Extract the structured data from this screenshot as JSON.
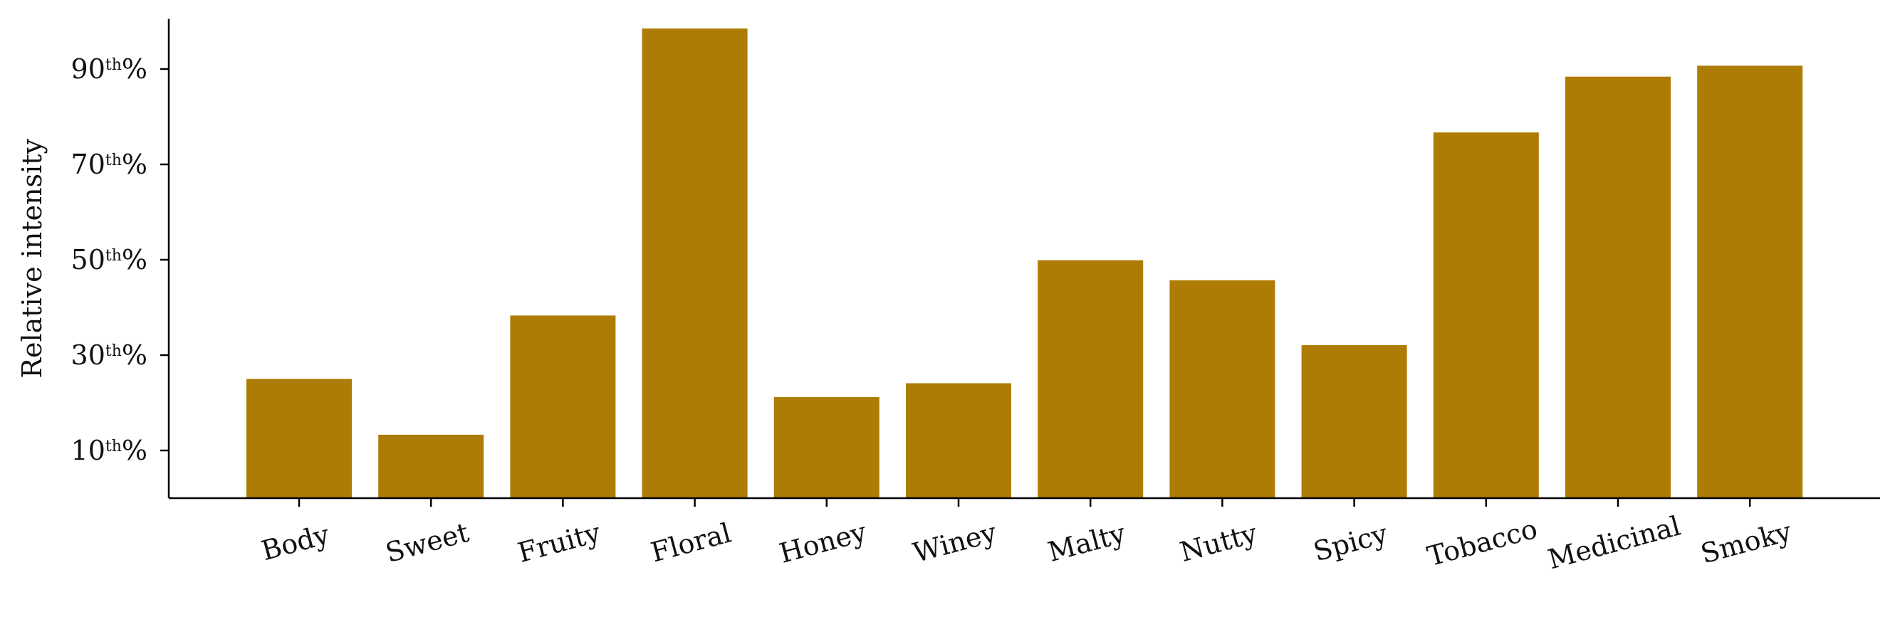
{
  "chart_data": {
    "type": "bar",
    "categories": [
      "Body",
      "Sweet",
      "Fruity",
      "Floral",
      "Honey",
      "Winey",
      "Malty",
      "Nutty",
      "Spicy",
      "Tobacco",
      "Medicinal",
      "Smoky"
    ],
    "values": [
      25,
      13.3,
      38.3,
      98.5,
      21.2,
      24.1,
      49.9,
      45.7,
      32.1,
      76.7,
      88.4,
      90.7
    ],
    "ylabel": "Relative intensity",
    "xlabel": "",
    "ylim": [
      0,
      100
    ],
    "yticks": [
      10,
      30,
      50,
      70,
      90
    ],
    "ytick_labels": [
      {
        "num": "10",
        "sup": "th",
        "suffix": "%"
      },
      {
        "num": "30",
        "sup": "th",
        "suffix": "%"
      },
      {
        "num": "50",
        "sup": "th",
        "suffix": "%"
      },
      {
        "num": "70",
        "sup": "th",
        "suffix": "%"
      },
      {
        "num": "90",
        "sup": "th",
        "suffix": "%"
      }
    ],
    "bar_color": "#ad7c04",
    "grid": false,
    "legend": "none"
  }
}
